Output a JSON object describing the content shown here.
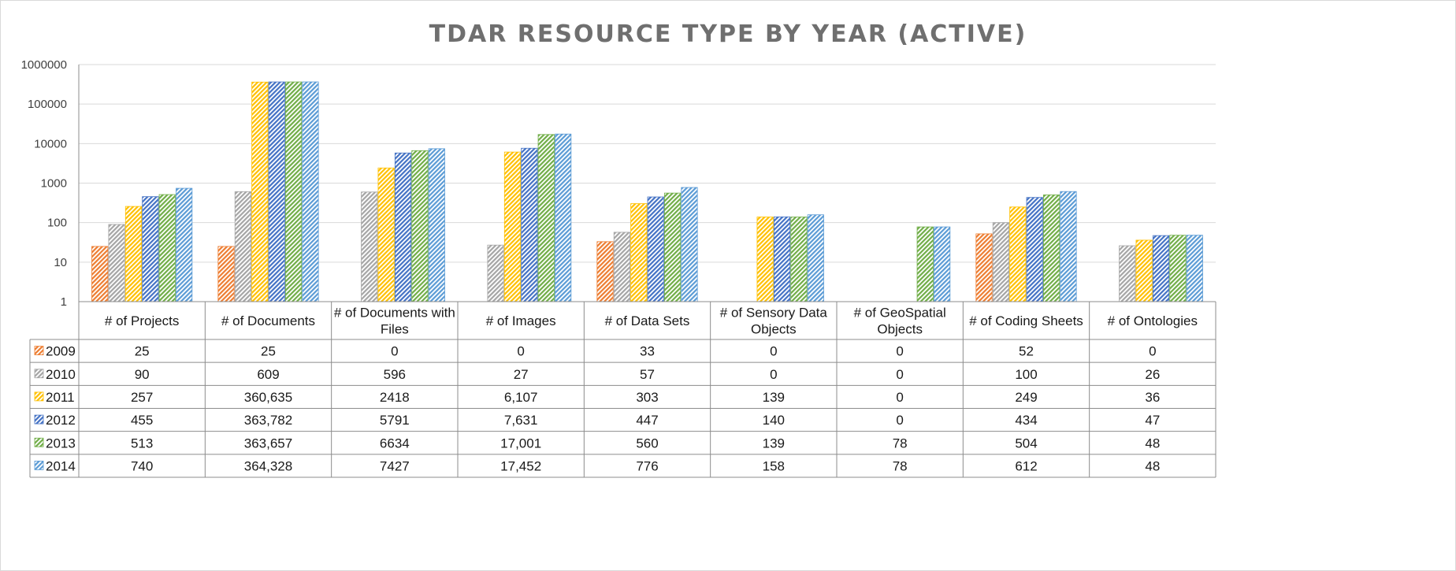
{
  "chart_data": {
    "type": "bar",
    "title": "TDAR RESOURCE TYPE BY YEAR (ACTIVE)",
    "y_scale": "log",
    "ylim": [
      1,
      1000000
    ],
    "y_ticks": [
      "1",
      "10",
      "100",
      "1000",
      "10000",
      "100000",
      "1000000"
    ],
    "grid": true,
    "legend": "data table below the plot",
    "categories": [
      "# of Projects",
      "# of Documents",
      "# of Documents with Files",
      "# of Images",
      "# of Data Sets",
      "# of Sensory Data Objects",
      "# of GeoSpatial Objects",
      "# of Coding Sheets",
      "# of Ontologies"
    ],
    "category_lines": [
      [
        "# of Projects"
      ],
      [
        "# of Documents"
      ],
      [
        "# of Documents with",
        "Files"
      ],
      [
        "# of Images"
      ],
      [
        "# of Data Sets"
      ],
      [
        "# of Sensory Data",
        "Objects"
      ],
      [
        "# of GeoSpatial",
        "Objects"
      ],
      [
        "# of Coding Sheets"
      ],
      [
        "# of Ontologies"
      ]
    ],
    "series": [
      {
        "name": "2009",
        "color": "#ed7d31",
        "values": [
          25,
          25,
          0,
          0,
          33,
          0,
          0,
          52,
          0
        ],
        "labels": [
          "25",
          "25",
          "0",
          "0",
          "33",
          "0",
          "0",
          "52",
          "0"
        ]
      },
      {
        "name": "2010",
        "color": "#a5a5a5",
        "values": [
          90,
          609,
          596,
          27,
          57,
          0,
          0,
          100,
          26
        ],
        "labels": [
          "90",
          "609",
          "596",
          "27",
          "57",
          "0",
          "0",
          "100",
          "26"
        ]
      },
      {
        "name": "2011",
        "color": "#ffc000",
        "values": [
          257,
          360635,
          2418,
          6107,
          303,
          139,
          0,
          249,
          36
        ],
        "labels": [
          "257",
          "360,635",
          "2418",
          "6,107",
          "303",
          "139",
          "0",
          "249",
          "36"
        ]
      },
      {
        "name": "2012",
        "color": "#4472c4",
        "values": [
          455,
          363782,
          5791,
          7631,
          447,
          140,
          0,
          434,
          47
        ],
        "labels": [
          "455",
          "363,782",
          "5791",
          "7,631",
          "447",
          "140",
          "0",
          "434",
          "47"
        ]
      },
      {
        "name": "2013",
        "color": "#70ad47",
        "values": [
          513,
          363657,
          6634,
          17001,
          560,
          139,
          78,
          504,
          48
        ],
        "labels": [
          "513",
          "363,657",
          "6634",
          "17,001",
          "560",
          "139",
          "78",
          "504",
          "48"
        ]
      },
      {
        "name": "2014",
        "color": "#5b9bd5",
        "values": [
          740,
          364328,
          7427,
          17452,
          776,
          158,
          78,
          612,
          48
        ],
        "labels": [
          "740",
          "364,328",
          "7427",
          "17,452",
          "776",
          "158",
          "78",
          "612",
          "48"
        ]
      }
    ]
  }
}
